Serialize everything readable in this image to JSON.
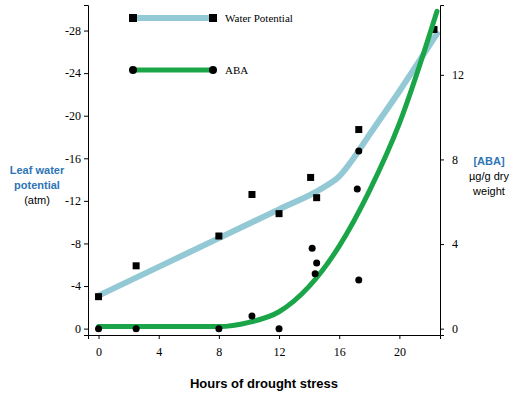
{
  "chart_data": {
    "type": "line",
    "x_label": "Hours of drought stress",
    "y_label": "Leaf water potential",
    "y_label_units": "(atm)",
    "y2_label": "[ABA]",
    "y2_label_units": "µg/g dry weight",
    "xlim": [
      -0.7,
      22.7
    ],
    "xticks": [
      0,
      4,
      8,
      12,
      16,
      20
    ],
    "ylim": [
      0.6,
      -30.4
    ],
    "yticks": [
      0,
      -4,
      -8,
      -12,
      -16,
      -20,
      -24,
      -28
    ],
    "y2lim": [
      -0.3,
      15.3
    ],
    "y2ticks": [
      0,
      4,
      8,
      12
    ],
    "legend": "top-left",
    "series": [
      {
        "name": "Water Potential",
        "color": "#93c9d4",
        "marker": "square",
        "line_style": "solid",
        "x": [
          0,
          4,
          8,
          12,
          15,
          16,
          17,
          18,
          20,
          22.5
        ],
        "values": [
          -3.1,
          -5.8,
          -8.5,
          -11.2,
          -13.3,
          -14.3,
          -16.1,
          -18.2,
          -22.3,
          -27.7
        ],
        "points": {
          "x": [
            0,
            2.5,
            8,
            10.2,
            12,
            14.1,
            14.5,
            17.3,
            22.3
          ],
          "values": [
            -3.0,
            -5.9,
            -8.7,
            -12.6,
            -10.8,
            -14.2,
            -12.3,
            -18.7,
            -28.1
          ]
        }
      },
      {
        "name": "ABA",
        "color": "#1aa548",
        "marker": "circle",
        "line_style": "solid",
        "axis": "y2",
        "x": [
          0,
          4,
          8,
          10,
          12,
          14,
          16,
          18,
          20,
          22.5
        ],
        "values": [
          0.1,
          0.1,
          0.1,
          0.3,
          0.8,
          2.0,
          3.9,
          6.5,
          9.7,
          15.0
        ],
        "points": {
          "x": [
            0,
            2.5,
            8,
            10.2,
            12,
            14.2,
            14.5,
            14.4,
            17.3,
            17.2,
            17.3
          ],
          "values": [
            0,
            0,
            0,
            0.6,
            0,
            3.8,
            3.1,
            2.6,
            8.4,
            6.6,
            2.3
          ]
        }
      }
    ]
  }
}
